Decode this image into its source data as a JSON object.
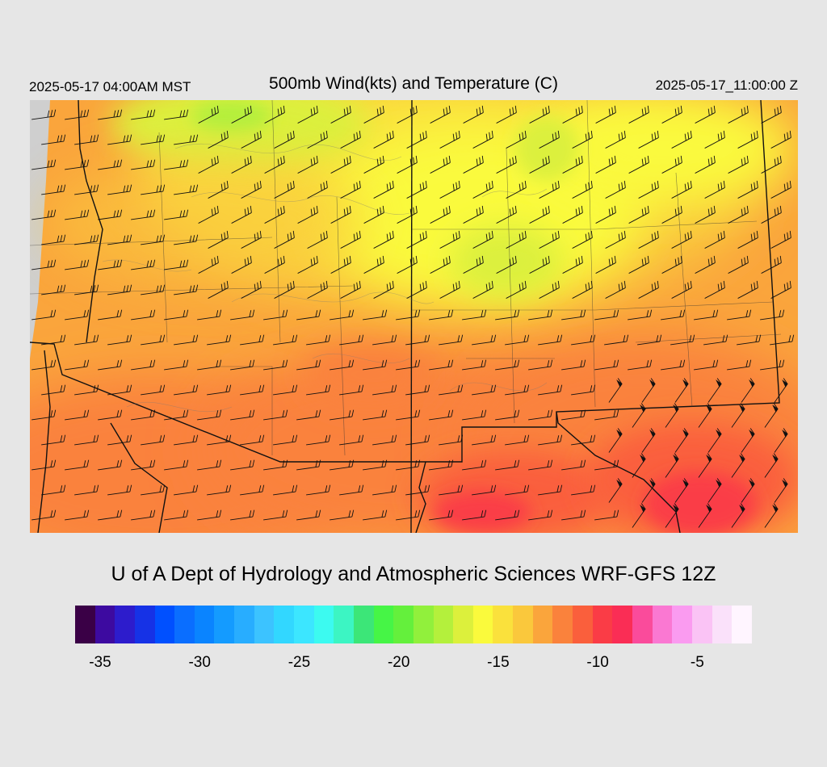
{
  "header": {
    "local_time": "2025-05-17 04:00AM MST",
    "title": "500mb Wind(kts) and Temperature (C)",
    "utc_time": "2025-05-17_11:00:00 Z"
  },
  "credit": "U of A Dept of Hydrology and Atmospheric Sciences WRF-GFS 12Z",
  "colorbar": {
    "colors": [
      "#3a0046",
      "#3d0aa0",
      "#2d1ccc",
      "#1632e6",
      "#0050ff",
      "#0a6eff",
      "#0a84ff",
      "#149bff",
      "#28adff",
      "#3cc3ff",
      "#32d7ff",
      "#3ce6ff",
      "#3cfaf0",
      "#3cf5c3",
      "#3ce678",
      "#46f546",
      "#64f03c",
      "#91f03c",
      "#b4f03c",
      "#dcf03c",
      "#fafa3c",
      "#fae13c",
      "#fac83c",
      "#faa53c",
      "#fa823c",
      "#fa5f3c",
      "#fa3c46",
      "#fa2d55",
      "#fa4b9b",
      "#fa78d2",
      "#fa9bf0",
      "#fac3f5",
      "#fae1fa",
      "#fff5ff"
    ],
    "tick_labels": [
      "-35",
      "-30",
      "-25",
      "-20",
      "-15",
      "-10",
      "-5"
    ],
    "tick_values": [
      -35,
      -30,
      -25,
      -20,
      -15,
      -10,
      -5
    ],
    "value_min": -36,
    "value_max": -2
  },
  "map": {
    "field": "500mb temperature (C) with wind barbs (kts)",
    "temperature_range_c": [
      -18,
      -9
    ],
    "coldest_region": "north-central (yellow-green, about -17 C)",
    "warmest_region": "southeast (red, about -9 C)"
  }
}
